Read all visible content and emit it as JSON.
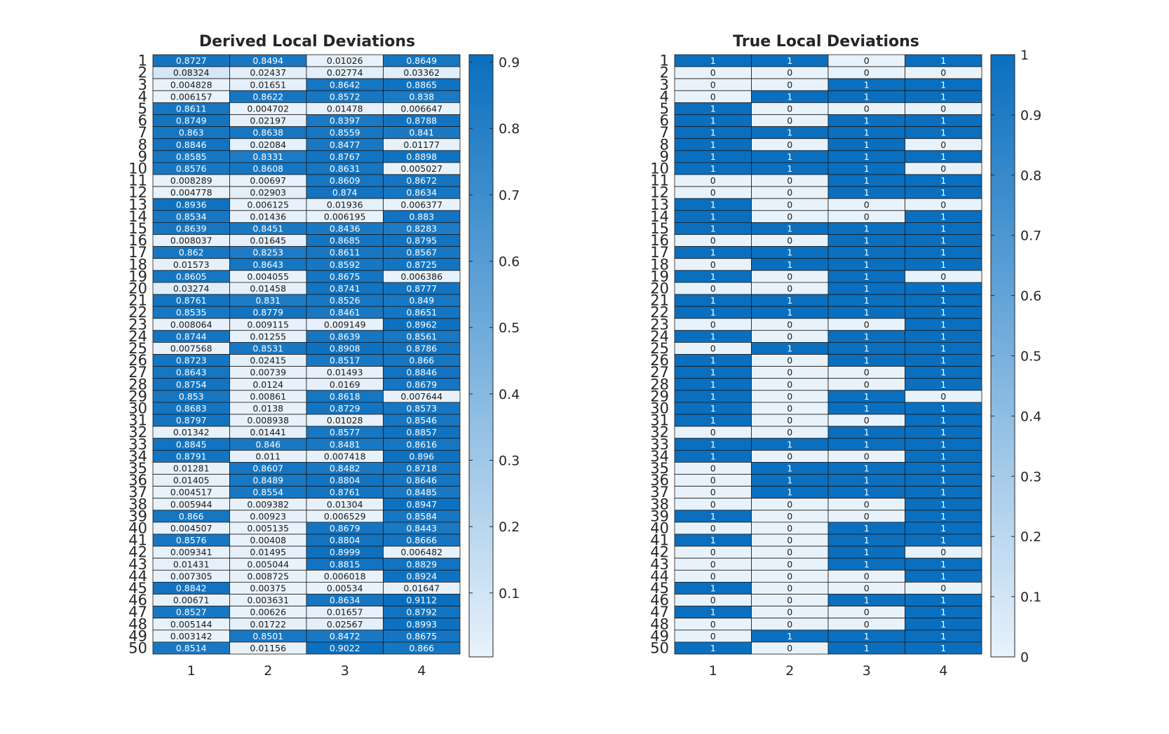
{
  "chart_data": [
    {
      "type": "heatmap",
      "title": "Derived Local Deviations",
      "x_categories": [
        "1",
        "2",
        "3",
        "4"
      ],
      "y_categories": [
        "1",
        "2",
        "3",
        "4",
        "5",
        "6",
        "7",
        "8",
        "9",
        "10",
        "11",
        "12",
        "13",
        "14",
        "15",
        "16",
        "17",
        "18",
        "19",
        "20",
        "21",
        "22",
        "23",
        "24",
        "25",
        "26",
        "27",
        "28",
        "29",
        "30",
        "31",
        "32",
        "33",
        "34",
        "35",
        "36",
        "37",
        "38",
        "39",
        "40",
        "41",
        "42",
        "43",
        "44",
        "45",
        "46",
        "47",
        "48",
        "49",
        "50"
      ],
      "values": [
        [
          "0.8727",
          "0.8494",
          "0.01026",
          "0.8649"
        ],
        [
          "0.08324",
          "0.02437",
          "0.02774",
          "0.03362"
        ],
        [
          "0.004828",
          "0.01651",
          "0.8642",
          "0.8865"
        ],
        [
          "0.006157",
          "0.8622",
          "0.8572",
          "0.838"
        ],
        [
          "0.8611",
          "0.004702",
          "0.01478",
          "0.006647"
        ],
        [
          "0.8749",
          "0.02197",
          "0.8397",
          "0.8788"
        ],
        [
          "0.863",
          "0.8638",
          "0.8559",
          "0.841"
        ],
        [
          "0.8846",
          "0.02084",
          "0.8477",
          "0.01177"
        ],
        [
          "0.8585",
          "0.8331",
          "0.8767",
          "0.8898"
        ],
        [
          "0.8576",
          "0.8608",
          "0.8631",
          "0.005027"
        ],
        [
          "0.008289",
          "0.00697",
          "0.8609",
          "0.8672"
        ],
        [
          "0.004778",
          "0.02903",
          "0.874",
          "0.8634"
        ],
        [
          "0.8936",
          "0.006125",
          "0.01936",
          "0.006377"
        ],
        [
          "0.8534",
          "0.01436",
          "0.006195",
          "0.883"
        ],
        [
          "0.8639",
          "0.8451",
          "0.8436",
          "0.8283"
        ],
        [
          "0.008037",
          "0.01645",
          "0.8685",
          "0.8795"
        ],
        [
          "0.862",
          "0.8253",
          "0.8611",
          "0.8567"
        ],
        [
          "0.01573",
          "0.8643",
          "0.8592",
          "0.8725"
        ],
        [
          "0.8605",
          "0.004055",
          "0.8675",
          "0.006386"
        ],
        [
          "0.03274",
          "0.01458",
          "0.8741",
          "0.8777"
        ],
        [
          "0.8761",
          "0.831",
          "0.8526",
          "0.849"
        ],
        [
          "0.8535",
          "0.8779",
          "0.8461",
          "0.8651"
        ],
        [
          "0.008064",
          "0.009115",
          "0.009149",
          "0.8962"
        ],
        [
          "0.8744",
          "0.01255",
          "0.8639",
          "0.8561"
        ],
        [
          "0.007568",
          "0.8531",
          "0.8908",
          "0.8786"
        ],
        [
          "0.8723",
          "0.02415",
          "0.8517",
          "0.866"
        ],
        [
          "0.8643",
          "0.00739",
          "0.01493",
          "0.8846"
        ],
        [
          "0.8754",
          "0.0124",
          "0.0169",
          "0.8679"
        ],
        [
          "0.853",
          "0.00861",
          "0.8618",
          "0.007644"
        ],
        [
          "0.8683",
          "0.0138",
          "0.8729",
          "0.8573"
        ],
        [
          "0.8797",
          "0.008938",
          "0.01028",
          "0.8546"
        ],
        [
          "0.01342",
          "0.01441",
          "0.8577",
          "0.8857"
        ],
        [
          "0.8845",
          "0.846",
          "0.8481",
          "0.8616"
        ],
        [
          "0.8791",
          "0.011",
          "0.007418",
          "0.896"
        ],
        [
          "0.01281",
          "0.8607",
          "0.8482",
          "0.8718"
        ],
        [
          "0.01405",
          "0.8489",
          "0.8804",
          "0.8646"
        ],
        [
          "0.004517",
          "0.8554",
          "0.8761",
          "0.8485"
        ],
        [
          "0.005944",
          "0.009382",
          "0.01304",
          "0.8947"
        ],
        [
          "0.866",
          "0.00923",
          "0.006529",
          "0.8584"
        ],
        [
          "0.004507",
          "0.005135",
          "0.8679",
          "0.8443"
        ],
        [
          "0.8576",
          "0.00408",
          "0.8804",
          "0.8666"
        ],
        [
          "0.009341",
          "0.01495",
          "0.8999",
          "0.006482"
        ],
        [
          "0.01431",
          "0.005044",
          "0.8815",
          "0.8829"
        ],
        [
          "0.007305",
          "0.008725",
          "0.006018",
          "0.8924"
        ],
        [
          "0.8842",
          "0.00375",
          "0.00534",
          "0.01647"
        ],
        [
          "0.00671",
          "0.003631",
          "0.8634",
          "0.9112"
        ],
        [
          "0.8527",
          "0.00626",
          "0.01657",
          "0.8792"
        ],
        [
          "0.005144",
          "0.01722",
          "0.02567",
          "0.8993"
        ],
        [
          "0.003142",
          "0.8501",
          "0.8472",
          "0.8675"
        ],
        [
          "0.8514",
          "0.01156",
          "0.9022",
          "0.866"
        ]
      ],
      "colorbar": {
        "range": [
          0.003631,
          0.9112
        ],
        "ticks": [
          "0.1",
          "0.2",
          "0.3",
          "0.4",
          "0.5",
          "0.6",
          "0.7",
          "0.8",
          "0.9"
        ]
      },
      "colormap": {
        "low": "#e8f2fb",
        "high": "#0a6fbf"
      }
    },
    {
      "type": "heatmap",
      "title": "True Local Deviations",
      "x_categories": [
        "1",
        "2",
        "3",
        "4"
      ],
      "y_categories": [
        "1",
        "2",
        "3",
        "4",
        "5",
        "6",
        "7",
        "8",
        "9",
        "10",
        "11",
        "12",
        "13",
        "14",
        "15",
        "16",
        "17",
        "18",
        "19",
        "20",
        "21",
        "22",
        "23",
        "24",
        "25",
        "26",
        "27",
        "28",
        "29",
        "30",
        "31",
        "32",
        "33",
        "34",
        "35",
        "36",
        "37",
        "38",
        "39",
        "40",
        "41",
        "42",
        "43",
        "44",
        "45",
        "46",
        "47",
        "48",
        "49",
        "50"
      ],
      "values": [
        [
          "1",
          "1",
          "0",
          "1"
        ],
        [
          "0",
          "0",
          "0",
          "0"
        ],
        [
          "0",
          "0",
          "1",
          "1"
        ],
        [
          "0",
          "1",
          "1",
          "1"
        ],
        [
          "1",
          "0",
          "0",
          "0"
        ],
        [
          "1",
          "0",
          "1",
          "1"
        ],
        [
          "1",
          "1",
          "1",
          "1"
        ],
        [
          "1",
          "0",
          "1",
          "0"
        ],
        [
          "1",
          "1",
          "1",
          "1"
        ],
        [
          "1",
          "1",
          "1",
          "0"
        ],
        [
          "0",
          "0",
          "1",
          "1"
        ],
        [
          "0",
          "0",
          "1",
          "1"
        ],
        [
          "1",
          "0",
          "0",
          "0"
        ],
        [
          "1",
          "0",
          "0",
          "1"
        ],
        [
          "1",
          "1",
          "1",
          "1"
        ],
        [
          "0",
          "0",
          "1",
          "1"
        ],
        [
          "1",
          "1",
          "1",
          "1"
        ],
        [
          "0",
          "1",
          "1",
          "1"
        ],
        [
          "1",
          "0",
          "1",
          "0"
        ],
        [
          "0",
          "0",
          "1",
          "1"
        ],
        [
          "1",
          "1",
          "1",
          "1"
        ],
        [
          "1",
          "1",
          "1",
          "1"
        ],
        [
          "0",
          "0",
          "0",
          "1"
        ],
        [
          "1",
          "0",
          "1",
          "1"
        ],
        [
          "0",
          "1",
          "1",
          "1"
        ],
        [
          "1",
          "0",
          "1",
          "1"
        ],
        [
          "1",
          "0",
          "0",
          "1"
        ],
        [
          "1",
          "0",
          "0",
          "1"
        ],
        [
          "1",
          "0",
          "1",
          "0"
        ],
        [
          "1",
          "0",
          "1",
          "1"
        ],
        [
          "1",
          "0",
          "0",
          "1"
        ],
        [
          "0",
          "0",
          "1",
          "1"
        ],
        [
          "1",
          "1",
          "1",
          "1"
        ],
        [
          "1",
          "0",
          "0",
          "1"
        ],
        [
          "0",
          "1",
          "1",
          "1"
        ],
        [
          "0",
          "1",
          "1",
          "1"
        ],
        [
          "0",
          "1",
          "1",
          "1"
        ],
        [
          "0",
          "0",
          "0",
          "1"
        ],
        [
          "1",
          "0",
          "0",
          "1"
        ],
        [
          "0",
          "0",
          "1",
          "1"
        ],
        [
          "1",
          "0",
          "1",
          "1"
        ],
        [
          "0",
          "0",
          "1",
          "0"
        ],
        [
          "0",
          "0",
          "1",
          "1"
        ],
        [
          "0",
          "0",
          "0",
          "1"
        ],
        [
          "1",
          "0",
          "0",
          "0"
        ],
        [
          "0",
          "0",
          "1",
          "1"
        ],
        [
          "1",
          "0",
          "0",
          "1"
        ],
        [
          "0",
          "0",
          "0",
          "1"
        ],
        [
          "0",
          "1",
          "1",
          "1"
        ],
        [
          "1",
          "0",
          "1",
          "1"
        ]
      ],
      "colorbar": {
        "range": [
          0,
          1
        ],
        "ticks": [
          "0",
          "0.1",
          "0.2",
          "0.3",
          "0.4",
          "0.5",
          "0.6",
          "0.7",
          "0.8",
          "0.9",
          "1"
        ]
      },
      "colormap": {
        "low": "#e8f2fb",
        "high": "#0a6fbf"
      }
    }
  ]
}
